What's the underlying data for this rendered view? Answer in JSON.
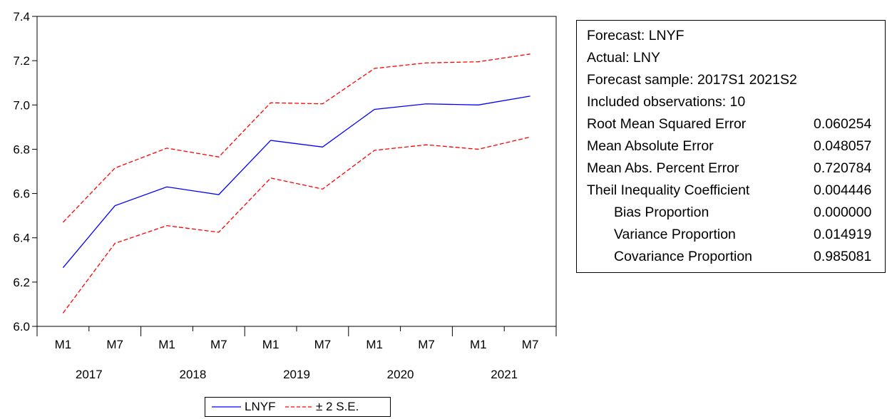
{
  "chart_data": {
    "type": "line",
    "x_labels": [
      "M1",
      "M7",
      "M1",
      "M7",
      "M1",
      "M7",
      "M1",
      "M7",
      "M1",
      "M7"
    ],
    "years": [
      "2017",
      "2018",
      "2019",
      "2020",
      "2021"
    ],
    "y_ticks": [
      "6.0",
      "6.2",
      "6.4",
      "6.6",
      "6.8",
      "7.0",
      "7.2",
      "7.4"
    ],
    "ylim": [
      6.0,
      7.4
    ],
    "series": [
      {
        "name": "LNYF",
        "color": "#0000ff",
        "style": "solid",
        "values": [
          6.265,
          6.545,
          6.63,
          6.595,
          6.84,
          6.81,
          6.98,
          7.005,
          7.0,
          7.04
        ]
      },
      {
        "name": "± 2 S.E.",
        "color": "#ff0000",
        "style": "dashed",
        "band": "upper",
        "values": [
          6.47,
          6.715,
          6.805,
          6.765,
          7.01,
          7.005,
          7.165,
          7.19,
          7.195,
          7.23
        ]
      },
      {
        "name": "± 2 S.E.",
        "color": "#ff0000",
        "style": "dashed",
        "band": "lower",
        "values": [
          6.06,
          6.375,
          6.455,
          6.425,
          6.67,
          6.62,
          6.795,
          6.82,
          6.8,
          6.855
        ]
      }
    ],
    "legend": [
      "LNYF",
      "± 2 S.E."
    ],
    "legend_position": "bottom-center",
    "grid": false
  },
  "stats": {
    "header": [
      "Forecast: LNYF",
      "Actual: LNY",
      "Forecast sample: 2017S1 2021S2",
      "Included observations: 10"
    ],
    "rows": [
      {
        "label": "Root Mean Squared Error",
        "value": "0.060254",
        "indent": false
      },
      {
        "label": "Mean Absolute Error",
        "value": "0.048057",
        "indent": false
      },
      {
        "label": "Mean Abs. Percent Error",
        "value": "0.720784",
        "indent": false
      },
      {
        "label": "Theil Inequality Coefficient",
        "value": "0.004446",
        "indent": false
      },
      {
        "label": "Bias Proportion",
        "value": "0.000000",
        "indent": true
      },
      {
        "label": "Variance Proportion",
        "value": "0.014919",
        "indent": true
      },
      {
        "label": "Covariance Proportion",
        "value": "0.985081",
        "indent": true
      }
    ]
  }
}
